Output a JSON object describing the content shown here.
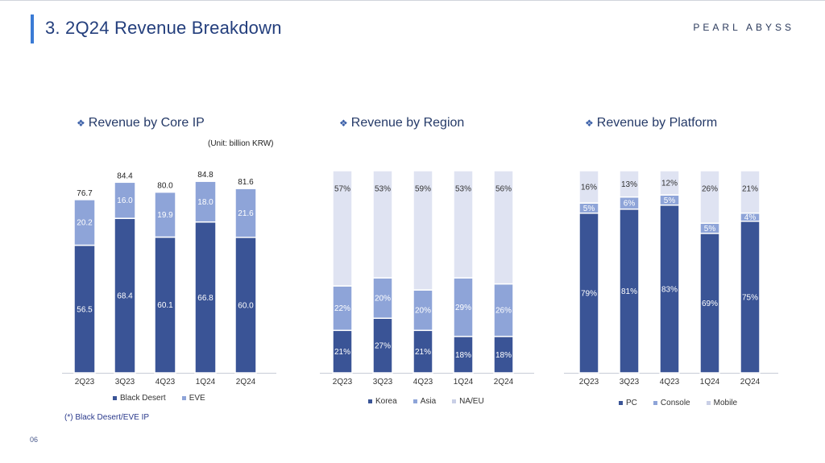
{
  "page": {
    "title": "3. 2Q24 Revenue Breakdown",
    "logo": "PEARL ABYSS",
    "footnote": "(*) Black Desert/EVE IP",
    "page_number": "06"
  },
  "colors": {
    "dark": "#3a5496",
    "mid": "#8ea4d8",
    "light": "#dfe3f2",
    "accent": "#3a7bd5"
  },
  "chart_data": [
    {
      "type": "bar",
      "stacked": true,
      "title": "Revenue by Core IP",
      "unit": "(Unit: billion KRW)",
      "categories": [
        "2Q23",
        "3Q23",
        "4Q23",
        "1Q24",
        "2Q24"
      ],
      "series": [
        {
          "name": "Black Desert",
          "values": [
            56.5,
            68.4,
            60.1,
            66.8,
            60.0
          ],
          "labels": [
            "56.5",
            "68.4",
            "60.1",
            "66.8",
            "60.0"
          ]
        },
        {
          "name": "EVE",
          "values": [
            20.2,
            16.0,
            19.9,
            18.0,
            21.6
          ],
          "labels": [
            "20.2",
            "16.0",
            "19.9",
            "18.0",
            "21.6"
          ]
        }
      ],
      "totals": [
        76.7,
        84.4,
        80.0,
        84.8,
        81.6
      ],
      "total_labels": [
        "76.7",
        "84.4",
        "80.0",
        "84.8",
        "81.6"
      ],
      "ylim": [
        0,
        100
      ],
      "legend": "bottom"
    },
    {
      "type": "bar",
      "stacked": true,
      "percent": true,
      "title": "Revenue by Region",
      "categories": [
        "2Q23",
        "3Q23",
        "4Q23",
        "1Q24",
        "2Q24"
      ],
      "series": [
        {
          "name": "Korea",
          "values": [
            21,
            27,
            21,
            18,
            18
          ],
          "labels": [
            "21%",
            "27%",
            "21%",
            "18%",
            "18%"
          ]
        },
        {
          "name": "Asia",
          "values": [
            22,
            20,
            20,
            29,
            26
          ],
          "labels": [
            "22%",
            "20%",
            "20%",
            "29%",
            "26%"
          ]
        },
        {
          "name": "NA/EU",
          "values": [
            57,
            53,
            59,
            53,
            56
          ],
          "labels": [
            "57%",
            "53%",
            "59%",
            "53%",
            "56%"
          ]
        }
      ],
      "ylim": [
        0,
        100
      ],
      "legend": "bottom"
    },
    {
      "type": "bar",
      "stacked": true,
      "percent": true,
      "title": "Revenue by Platform",
      "categories": [
        "2Q23",
        "3Q23",
        "4Q23",
        "1Q24",
        "2Q24"
      ],
      "series": [
        {
          "name": "PC",
          "values": [
            79,
            81,
            83,
            69,
            75
          ],
          "labels": [
            "79%",
            "81%",
            "83%",
            "69%",
            "75%"
          ]
        },
        {
          "name": "Console",
          "values": [
            5,
            6,
            5,
            5,
            4
          ],
          "labels": [
            "5%",
            "6%",
            "5%",
            "5%",
            "4%"
          ]
        },
        {
          "name": "Mobile",
          "values": [
            16,
            13,
            12,
            26,
            21
          ],
          "labels": [
            "16%",
            "13%",
            "12%",
            "26%",
            "21%"
          ]
        }
      ],
      "ylim": [
        0,
        100
      ],
      "legend": "bottom"
    }
  ]
}
